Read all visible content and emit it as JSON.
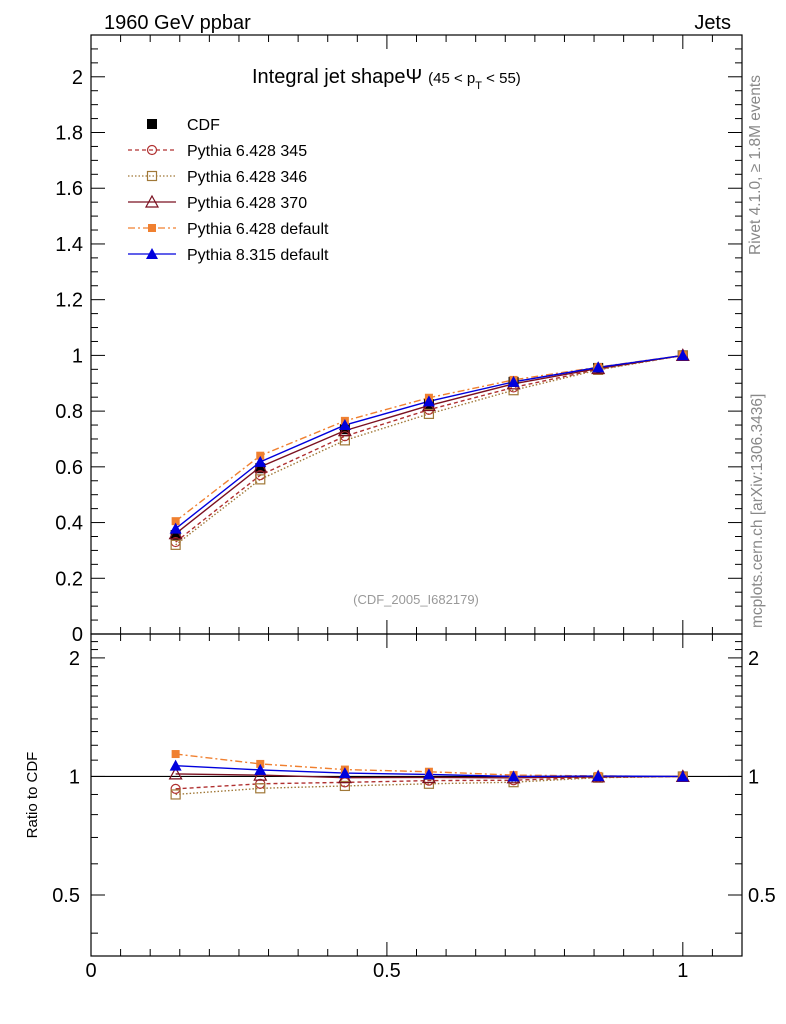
{
  "header": {
    "left": "1960 GeV ppbar",
    "right": "Jets"
  },
  "side": {
    "rivet": "Rivet 4.1.0, ≥ 1.8M events",
    "mcplots": "mcplots.cern.ch [arXiv:1306.3436]"
  },
  "chart_data": {
    "type": "line",
    "title": "Integral jet shapeΨ",
    "title_range": {
      "prefix": "(45 < p",
      "sub": "T",
      "suffix": " < 55)"
    },
    "analysis_id": "(CDF_2005_I682179)",
    "xlim": [
      0,
      1.1
    ],
    "ylim": [
      0,
      2.15
    ],
    "x_ticks": [
      0,
      0.5,
      1
    ],
    "x_tick_labels": [
      "0",
      "0.5",
      "1"
    ],
    "y_ticks": [
      0,
      0.2,
      0.4,
      0.6,
      0.8,
      1,
      1.2,
      1.4,
      1.6,
      1.8,
      2
    ],
    "y_tick_labels": [
      "0",
      "0.2",
      "0.4",
      "0.6",
      "0.8",
      "1",
      "1.2",
      "1.4",
      "1.6",
      "1.8",
      "2"
    ],
    "x": [
      0.143,
      0.286,
      0.429,
      0.571,
      0.714,
      0.857,
      1.0
    ],
    "legend": "top-left",
    "series": [
      {
        "name": "CDF",
        "color": "#000000",
        "dash": "none",
        "marker": "filled-square",
        "line": false,
        "values": [
          0.355,
          0.595,
          0.735,
          0.825,
          0.905,
          0.955,
          1.0
        ]
      },
      {
        "name": "Pythia 6.428 345",
        "color": "#b03030",
        "dash": "4,3",
        "marker": "open-circle",
        "line": true,
        "values": [
          0.33,
          0.57,
          0.71,
          0.805,
          0.885,
          0.95,
          1.0
        ]
      },
      {
        "name": "Pythia 6.428 346",
        "color": "#a07838",
        "dash": "1.5,2",
        "marker": "open-square",
        "line": true,
        "values": [
          0.32,
          0.555,
          0.695,
          0.79,
          0.875,
          0.948,
          1.0
        ]
      },
      {
        "name": "Pythia 6.428 370",
        "color": "#7a1020",
        "dash": "none",
        "marker": "open-triangle",
        "line": true,
        "values": [
          0.36,
          0.6,
          0.73,
          0.82,
          0.898,
          0.953,
          1.0
        ]
      },
      {
        "name": "Pythia 6.428 default",
        "color": "#f08030",
        "dash": "7,3,2,3",
        "marker": "filled-square-small",
        "line": true,
        "values": [
          0.405,
          0.64,
          0.765,
          0.848,
          0.912,
          0.958,
          1.0
        ]
      },
      {
        "name": "Pythia 8.315 default",
        "color": "#0000dd",
        "dash": "none",
        "marker": "filled-triangle",
        "line": true,
        "values": [
          0.378,
          0.618,
          0.75,
          0.835,
          0.905,
          0.957,
          1.0
        ]
      }
    ],
    "ratio": {
      "ylabel": "Ratio to CDF",
      "ylim": [
        0.35,
        2.3
      ],
      "y_ticks": [
        0.5,
        1,
        2
      ],
      "y_tick_labels": [
        "0.5",
        "1",
        "2"
      ],
      "series": [
        {
          "name": "Pythia 6.428 345",
          "values": [
            0.93,
            0.958,
            0.966,
            0.976,
            0.978,
            0.995,
            1.0
          ]
        },
        {
          "name": "Pythia 6.428 346",
          "values": [
            0.9,
            0.933,
            0.946,
            0.958,
            0.967,
            0.993,
            1.0
          ]
        },
        {
          "name": "Pythia 6.428 370",
          "values": [
            1.015,
            1.008,
            0.993,
            0.994,
            0.992,
            0.998,
            1.0
          ]
        },
        {
          "name": "Pythia 6.428 default",
          "values": [
            1.14,
            1.076,
            1.041,
            1.028,
            1.008,
            1.003,
            1.0
          ]
        },
        {
          "name": "Pythia 8.315 default",
          "values": [
            1.065,
            1.039,
            1.02,
            1.012,
            1.0,
            1.002,
            1.0
          ]
        }
      ]
    }
  }
}
